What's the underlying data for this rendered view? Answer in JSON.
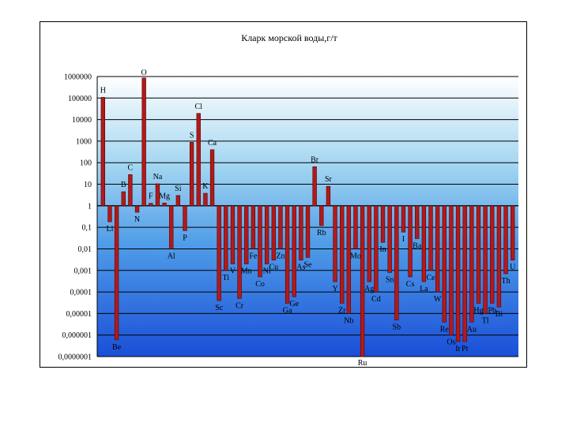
{
  "chart_data": {
    "type": "bar",
    "title": "Кларк морской воды,г/т",
    "xlabel": "",
    "ylabel": "",
    "scale": "log",
    "ylim": [
      1e-07,
      1000000.0
    ],
    "baseline": 1,
    "y_tick_labels": [
      "1000000",
      "100000",
      "10000",
      "1000",
      "100",
      "10",
      "1",
      "0,1",
      "0,01",
      "0,001",
      "0,0001",
      "0,00001",
      "0,000001",
      "0,0000001"
    ],
    "grid": "horizontal major lines",
    "legend": "none",
    "bar_color": "#b11a1a",
    "background_gradient": [
      "#ffffff",
      "#1a4fd8"
    ],
    "series": [
      {
        "categories": [
          "H",
          "Li",
          "Be",
          "B",
          "C",
          "N",
          "O",
          "F",
          "Na",
          "Mg",
          "Al",
          "Si",
          "P",
          "S",
          "Cl",
          "K",
          "Ca",
          "Sc",
          "Ti",
          "V",
          "Cr",
          "Mn",
          "Fe",
          "Co",
          "Ni",
          "Cu",
          "Zn",
          "Ga",
          "Ge",
          "As",
          "Se",
          "Br",
          "Rb",
          "Sr",
          "Y",
          "Zr",
          "Nb",
          "Mo",
          "Ru",
          "Ag",
          "Cd",
          "In",
          "Sn",
          "Sb",
          "I",
          "Cs",
          "Ba",
          "La",
          "Ce",
          "W",
          "Re",
          "Os",
          "Ir",
          "Pt",
          "Au",
          "Hg",
          "Tl",
          "Pb",
          "Bi",
          "Th",
          "U"
        ],
        "values": [
          108000,
          0.18,
          6e-07,
          4.5,
          28,
          0.5,
          857000,
          1.3,
          10.5,
          1.35,
          0.01,
          3,
          0.07,
          885,
          19400,
          3.8,
          400,
          4e-05,
          0.001,
          0.002,
          5e-05,
          0.002,
          0.01,
          0.0005,
          0.002,
          0.003,
          0.01,
          3e-05,
          6e-05,
          0.003,
          0.004,
          65,
          0.12,
          8,
          0.0003,
          3e-05,
          1e-05,
          0.01,
          1e-07,
          0.0003,
          0.0001,
          0.02,
          0.0008,
          5e-06,
          0.06,
          0.0005,
          0.03,
          0.0003,
          0.001,
          0.0001,
          4e-06,
          1e-06,
          5e-07,
          5e-07,
          4e-06,
          3e-05,
          1e-05,
          3e-05,
          2e-05,
          0.0007,
          0.003
        ]
      }
    ]
  },
  "element_labels": {
    "H": "H",
    "Li": "Li",
    "Be": "Be",
    "B": "B",
    "C": "C",
    "N": "N",
    "O": "O",
    "F": "F",
    "Na": "Na",
    "Mg": "Mg",
    "Al": "Al",
    "Si": "Si",
    "P": "P",
    "S": "S",
    "Cl": "Cl",
    "K": "K",
    "Ca": "Ca",
    "Sc": "Sc",
    "Ti": "Ti",
    "V": "V",
    "Cr": "Cr",
    "Mn": "Mn",
    "Fe": "Fe",
    "Co": "Co",
    "Ni": "Ni",
    "Cu": "Cu",
    "Zn": "Zn",
    "Ga": "Ga",
    "Ge": "Ge",
    "As": "As",
    "Se": "Se",
    "Br": "Br",
    "Rb": "Rb",
    "Sr": "Sr",
    "Y": "Y",
    "Zr": "Zr",
    "Nb": "Nb",
    "Mo": "Mo",
    "Ru": "Ru",
    "Ag": "Ag",
    "Cd": "Cd",
    "In": "In",
    "Sn": "Sn",
    "Sb": "Sb",
    "I": "I",
    "Cs": "Cs",
    "Ba": "Ba",
    "La": "La",
    "Ce": "Ce",
    "W": "W",
    "Re": "Re",
    "Os": "Os",
    "Ir": "Ir",
    "Pt": "Pt",
    "Au": "Au",
    "Hg": "Hg",
    "Tl": "Tl",
    "Pb": "Pb",
    "Bi": "Bi",
    "Th": "Th",
    "U": "U"
  }
}
